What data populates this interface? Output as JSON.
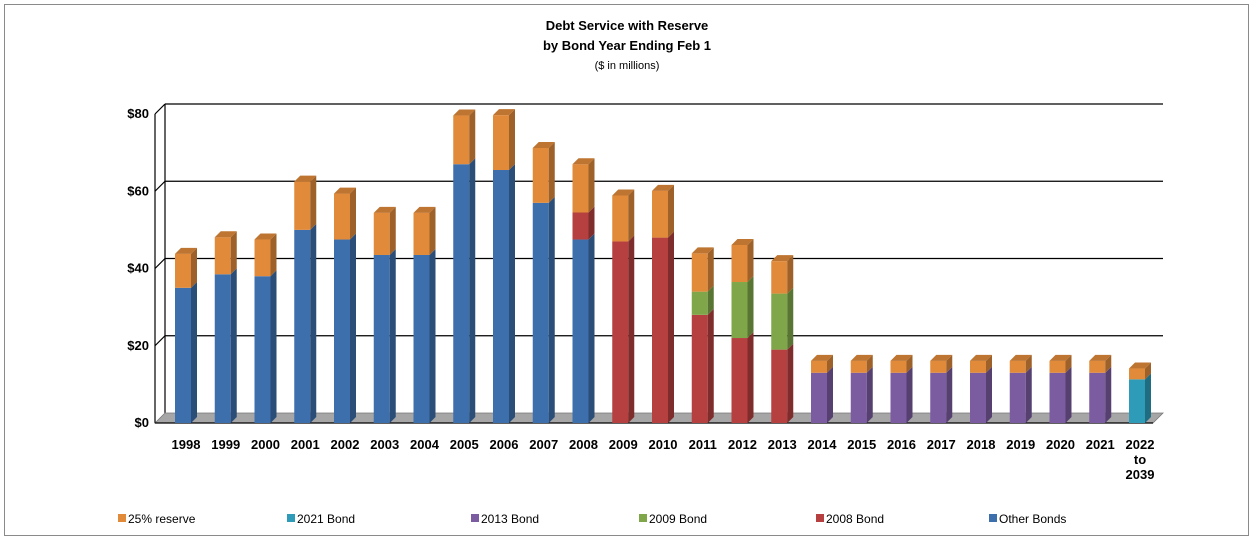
{
  "chart_data": {
    "type": "bar",
    "stacked": true,
    "three_d": true,
    "title": "Debt Service with Reserve",
    "subtitle": "by Bond Year Ending Feb 1",
    "units_note": "($ in millions)",
    "xlabel": "",
    "ylabel": "",
    "ylim": [
      0,
      80
    ],
    "yticks": [
      "$0",
      "$20",
      "$40",
      "$60",
      "$80"
    ],
    "ytick_values": [
      0,
      20,
      40,
      60,
      80
    ],
    "grid": true,
    "legend_position": "bottom",
    "categories": [
      [
        "1998"
      ],
      [
        "1999"
      ],
      [
        "2000"
      ],
      [
        "2001"
      ],
      [
        "2002"
      ],
      [
        "2003"
      ],
      [
        "2004"
      ],
      [
        "2005"
      ],
      [
        "2006"
      ],
      [
        "2007"
      ],
      [
        "2008"
      ],
      [
        "2009"
      ],
      [
        "2010"
      ],
      [
        "2011"
      ],
      [
        "2012"
      ],
      [
        "2013"
      ],
      [
        "2014"
      ],
      [
        "2015"
      ],
      [
        "2016"
      ],
      [
        "2017"
      ],
      [
        "2018"
      ],
      [
        "2019"
      ],
      [
        "2020"
      ],
      [
        "2021"
      ],
      [
        "2022",
        "to",
        "2039"
      ]
    ],
    "stack_order": [
      "Other Bonds",
      "2008 Bond",
      "2009 Bond",
      "2013 Bond",
      "2021 Bond",
      "25% reserve"
    ],
    "series": [
      {
        "name": "Other Bonds",
        "color": "#3e6fad",
        "values": [
          35,
          38.5,
          38,
          50,
          47.5,
          43.5,
          43.5,
          67,
          65.5,
          57,
          47.5,
          0,
          0,
          0,
          0,
          0,
          0,
          0,
          0,
          0,
          0,
          0,
          0,
          0,
          0
        ]
      },
      {
        "name": "2008 Bond",
        "color": "#b5403f",
        "values": [
          0,
          0,
          0,
          0,
          0,
          0,
          0,
          0,
          0,
          0,
          7,
          47,
          48,
          28,
          22,
          19,
          0,
          0,
          0,
          0,
          0,
          0,
          0,
          0,
          0
        ]
      },
      {
        "name": "2009 Bond",
        "color": "#7fa74a",
        "values": [
          0,
          0,
          0,
          0,
          0,
          0,
          0,
          0,
          0,
          0,
          0,
          0,
          0,
          6,
          14.5,
          14.5,
          0,
          0,
          0,
          0,
          0,
          0,
          0,
          0,
          0
        ]
      },
      {
        "name": "2013 Bond",
        "color": "#7b5ca0",
        "values": [
          0,
          0,
          0,
          0,
          0,
          0,
          0,
          0,
          0,
          0,
          0,
          0,
          0,
          0,
          0,
          0,
          13,
          13,
          13,
          13,
          13,
          13,
          13,
          13,
          0
        ]
      },
      {
        "name": "2021 Bond",
        "color": "#2e9cb8",
        "values": [
          0,
          0,
          0,
          0,
          0,
          0,
          0,
          0,
          0,
          0,
          0,
          0,
          0,
          0,
          0,
          0,
          0,
          0,
          0,
          0,
          0,
          0,
          0,
          0,
          11.3
        ]
      },
      {
        "name": "25% reserve",
        "color": "#e08a3a",
        "values": [
          8.8,
          9.6,
          9.5,
          12.5,
          11.9,
          10.9,
          10.9,
          12.6,
          14.2,
          14.2,
          12.5,
          11.9,
          12.1,
          9.9,
          9.6,
          8.4,
          3.1,
          3.1,
          3.1,
          3.1,
          3.1,
          3.1,
          3.1,
          3.1,
          2.8
        ]
      }
    ],
    "legend": [
      "25% reserve",
      "2021 Bond",
      "2013 Bond",
      "2009 Bond",
      "2008 Bond",
      "Other Bonds"
    ]
  }
}
